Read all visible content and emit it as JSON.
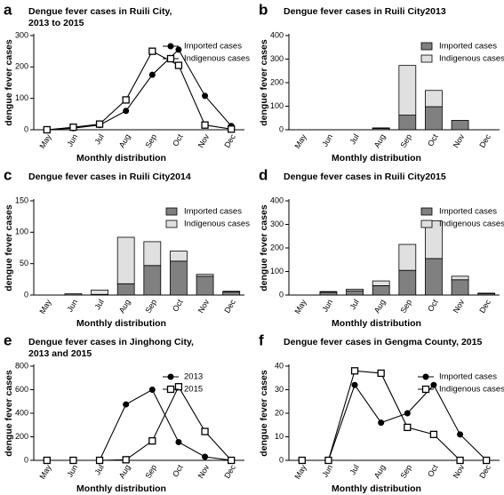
{
  "chart_data": [
    {
      "panel": "a",
      "type": "line",
      "title": [
        "Dengue fever cases in Ruili City,",
        "2013  to 2015"
      ],
      "xlabel": "Monthly distribution",
      "ylabel": "dengue fever cases",
      "categories": [
        "May",
        "Jun",
        "Jul",
        "Aug",
        "Sep",
        "Oct",
        "Nov",
        "Dec"
      ],
      "series": [
        {
          "name": "Imported cases",
          "color": "#000000",
          "marker": "circle",
          "values": [
            0,
            5,
            15,
            60,
            175,
            255,
            108,
            12
          ]
        },
        {
          "name": "Indigenous cases",
          "color": "#000000",
          "marker": "square",
          "values": [
            0,
            8,
            18,
            95,
            250,
            205,
            15,
            2
          ]
        }
      ],
      "ylim": [
        0,
        300
      ],
      "yticks": [
        0,
        100,
        200,
        300
      ],
      "legend": "upper right"
    },
    {
      "panel": "b",
      "type": "bar",
      "stacked": true,
      "title": [
        "Dengue fever cases in Ruili City2013"
      ],
      "xlabel": "Monthly distribution",
      "ylabel": "dengue fever cases",
      "categories": [
        "May",
        "Jun",
        "Jul",
        "Aug",
        "Sep",
        "Oct",
        "Nov",
        "Dec"
      ],
      "series": [
        {
          "name": "Imported cases",
          "color": "#808080",
          "values": [
            0,
            0,
            0,
            6,
            62,
            98,
            40,
            0
          ]
        },
        {
          "name": "Indigenous cases",
          "color": "#e0e0e0",
          "values": [
            0,
            0,
            0,
            2,
            211,
            69,
            0,
            0
          ]
        }
      ],
      "ylim": [
        0,
        400
      ],
      "yticks": [
        0,
        100,
        200,
        300,
        400
      ],
      "legend": "upper right"
    },
    {
      "panel": "c",
      "type": "bar",
      "stacked": true,
      "title": [
        "Dengue fever cases in Ruili City2014"
      ],
      "xlabel": "Monthly distribution",
      "ylabel": "dengue fever cases",
      "categories": [
        "May",
        "Jun",
        "Jul",
        "Aug",
        "Sep",
        "Oct",
        "Nov",
        "Dec"
      ],
      "series": [
        {
          "name": "Imported cases",
          "color": "#808080",
          "values": [
            0,
            2,
            1,
            18,
            47,
            54,
            30,
            5
          ]
        },
        {
          "name": "Indigenous cases",
          "color": "#e0e0e0",
          "values": [
            0,
            0,
            7,
            74,
            38,
            16,
            3,
            1
          ]
        }
      ],
      "ylim": [
        0,
        150
      ],
      "yticks": [
        0,
        50,
        100,
        150
      ],
      "legend": "upper right"
    },
    {
      "panel": "d",
      "type": "bar",
      "stacked": true,
      "title": [
        "Dengue fever cases in Ruili City2015"
      ],
      "xlabel": "Monthly distribution",
      "ylabel": "dengue fever cases",
      "categories": [
        "May",
        "Jun",
        "Jul",
        "Aug",
        "Sep",
        "Oct",
        "Nov",
        "Dec"
      ],
      "series": [
        {
          "name": "Imported cases",
          "color": "#808080",
          "values": [
            0,
            12,
            18,
            40,
            105,
            155,
            65,
            6
          ]
        },
        {
          "name": "Indigenous cases",
          "color": "#e0e0e0",
          "values": [
            0,
            3,
            7,
            20,
            110,
            160,
            15,
            2
          ]
        }
      ],
      "ylim": [
        0,
        400
      ],
      "yticks": [
        0,
        100,
        200,
        300,
        400
      ],
      "legend": "upper right"
    },
    {
      "panel": "e",
      "type": "line",
      "title": [
        "Dengue fever cases in Jinghong City,",
        "2013 and 2015"
      ],
      "xlabel": "Monthly distribution",
      "ylabel": "dengue fever cases",
      "categories": [
        "May",
        "Jun",
        "Jul",
        "Aug",
        "Sep",
        "Oct",
        "Nov",
        "Dec"
      ],
      "series": [
        {
          "name": "2013",
          "color": "#000000",
          "marker": "circle",
          "values": [
            0,
            0,
            0,
            475,
            600,
            155,
            30,
            0
          ]
        },
        {
          "name": "2015",
          "color": "#000000",
          "marker": "square",
          "values": [
            0,
            0,
            0,
            5,
            165,
            625,
            245,
            0
          ]
        }
      ],
      "ylim": [
        0,
        800
      ],
      "yticks": [
        0,
        200,
        400,
        600,
        800
      ],
      "legend": "upper right"
    },
    {
      "panel": "f",
      "type": "line",
      "title": [
        "Dengue fever cases in Gengma County, 2015"
      ],
      "xlabel": "Monthly distribution",
      "ylabel": "dengue fever cases",
      "categories": [
        "May",
        "Jun",
        "Jul",
        "Aug",
        "Sep",
        "Oct",
        "Nov",
        "Dec"
      ],
      "series": [
        {
          "name": "Imported cases",
          "color": "#000000",
          "marker": "circle",
          "values": [
            0,
            0,
            32,
            16,
            20,
            32,
            11,
            0
          ]
        },
        {
          "name": "Indigenous cases",
          "color": "#000000",
          "marker": "square",
          "values": [
            0,
            0,
            38,
            37,
            14,
            11,
            0,
            0
          ]
        }
      ],
      "ylim": [
        0,
        40
      ],
      "yticks": [
        0,
        10,
        20,
        30,
        40
      ],
      "legend": "upper right"
    }
  ]
}
